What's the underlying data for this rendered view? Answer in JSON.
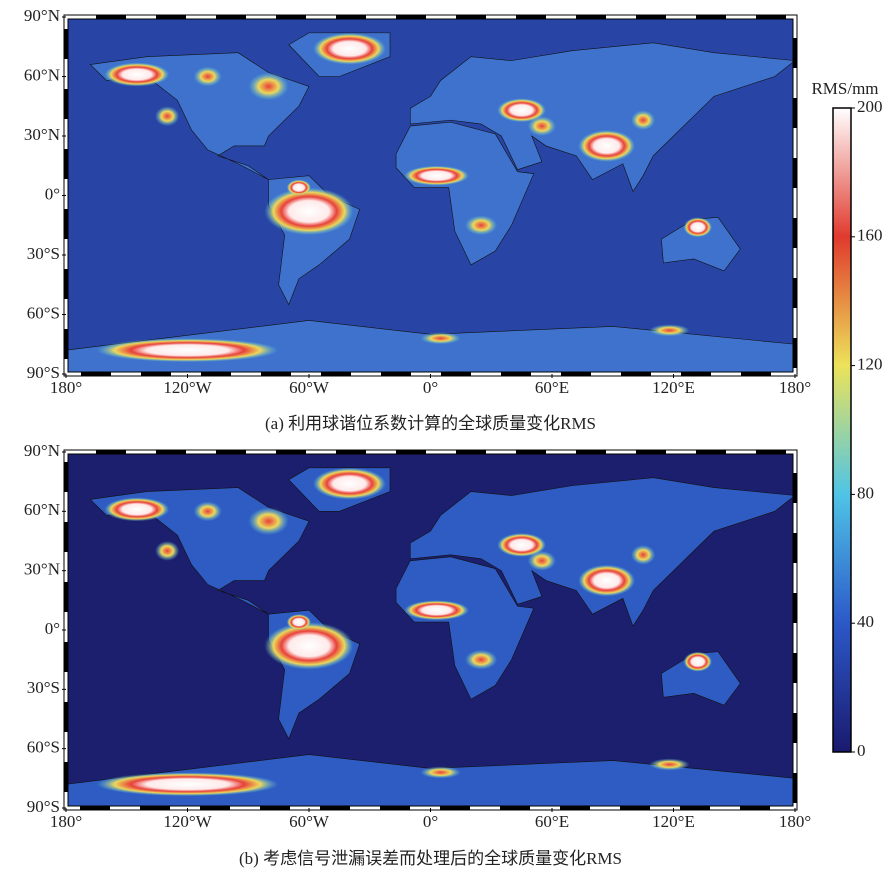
{
  "chart_data": [
    {
      "type": "map",
      "caption": "(a) 利用球谐位系数计算的全球质量变化RMS",
      "xlim": [
        -180,
        180
      ],
      "ylim": [
        -90,
        90
      ],
      "xticks": [
        {
          "value": -180,
          "label": "180°"
        },
        {
          "value": -120,
          "label": "120°W"
        },
        {
          "value": -60,
          "label": "60°W"
        },
        {
          "value": 0,
          "label": "0°"
        },
        {
          "value": 60,
          "label": "60°E"
        },
        {
          "value": 120,
          "label": "120°E"
        },
        {
          "value": 180,
          "label": "180°"
        }
      ],
      "yticks": [
        {
          "value": 90,
          "label": "90°N"
        },
        {
          "value": 60,
          "label": "60°N"
        },
        {
          "value": 30,
          "label": "30°N"
        },
        {
          "value": 0,
          "label": "0°"
        },
        {
          "value": -30,
          "label": "30°S"
        },
        {
          "value": -60,
          "label": "60°S"
        },
        {
          "value": -90,
          "label": "90°S"
        }
      ]
    },
    {
      "type": "map",
      "caption": "(b) 考虑信号泄漏误差而处理后的全球质量变化RMS",
      "xlim": [
        -180,
        180
      ],
      "ylim": [
        -90,
        90
      ],
      "xticks": [
        {
          "value": -180,
          "label": "180°"
        },
        {
          "value": -120,
          "label": "120°W"
        },
        {
          "value": -60,
          "label": "60°W"
        },
        {
          "value": 0,
          "label": "0°"
        },
        {
          "value": 60,
          "label": "60°E"
        },
        {
          "value": 120,
          "label": "120°E"
        },
        {
          "value": 180,
          "label": "180°"
        }
      ],
      "yticks": [
        {
          "value": 90,
          "label": "90°N"
        },
        {
          "value": 60,
          "label": "60°N"
        },
        {
          "value": 30,
          "label": "30°N"
        },
        {
          "value": 0,
          "label": "0°"
        },
        {
          "value": -30,
          "label": "30°S"
        },
        {
          "value": -60,
          "label": "60°S"
        },
        {
          "value": -90,
          "label": "90°S"
        }
      ]
    }
  ],
  "colorbar": {
    "label": "RMS/mm",
    "lim": [
      0,
      200
    ],
    "ticks": [
      0,
      40,
      80,
      120,
      160,
      200
    ],
    "colors": [
      "#1a1a6e",
      "#2c58c8",
      "#4fc4e6",
      "#ece35a",
      "#e03a2e",
      "#ffffff"
    ]
  }
}
